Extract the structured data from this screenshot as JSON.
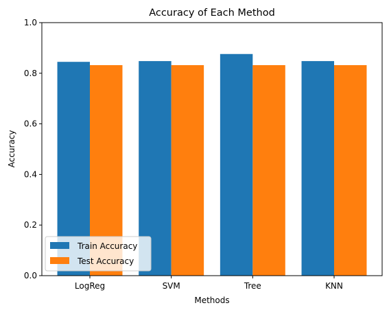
{
  "chart_data": {
    "type": "bar",
    "title": "Accuracy of Each Method",
    "xlabel": "Methods",
    "ylabel": "Accuracy",
    "categories": [
      "LogReg",
      "SVM",
      "Tree",
      "KNN"
    ],
    "series": [
      {
        "name": "Train Accuracy",
        "color": "#1f77b4",
        "values": [
          0.845,
          0.848,
          0.876,
          0.848
        ]
      },
      {
        "name": "Test Accuracy",
        "color": "#ff7f0e",
        "values": [
          0.832,
          0.832,
          0.832,
          0.832
        ]
      }
    ],
    "ylim": [
      0,
      1.0
    ],
    "yticks": [
      "0.0",
      "0.2",
      "0.4",
      "0.6",
      "0.8",
      "1.0"
    ],
    "grid": false,
    "legend_position": "lower-left"
  }
}
